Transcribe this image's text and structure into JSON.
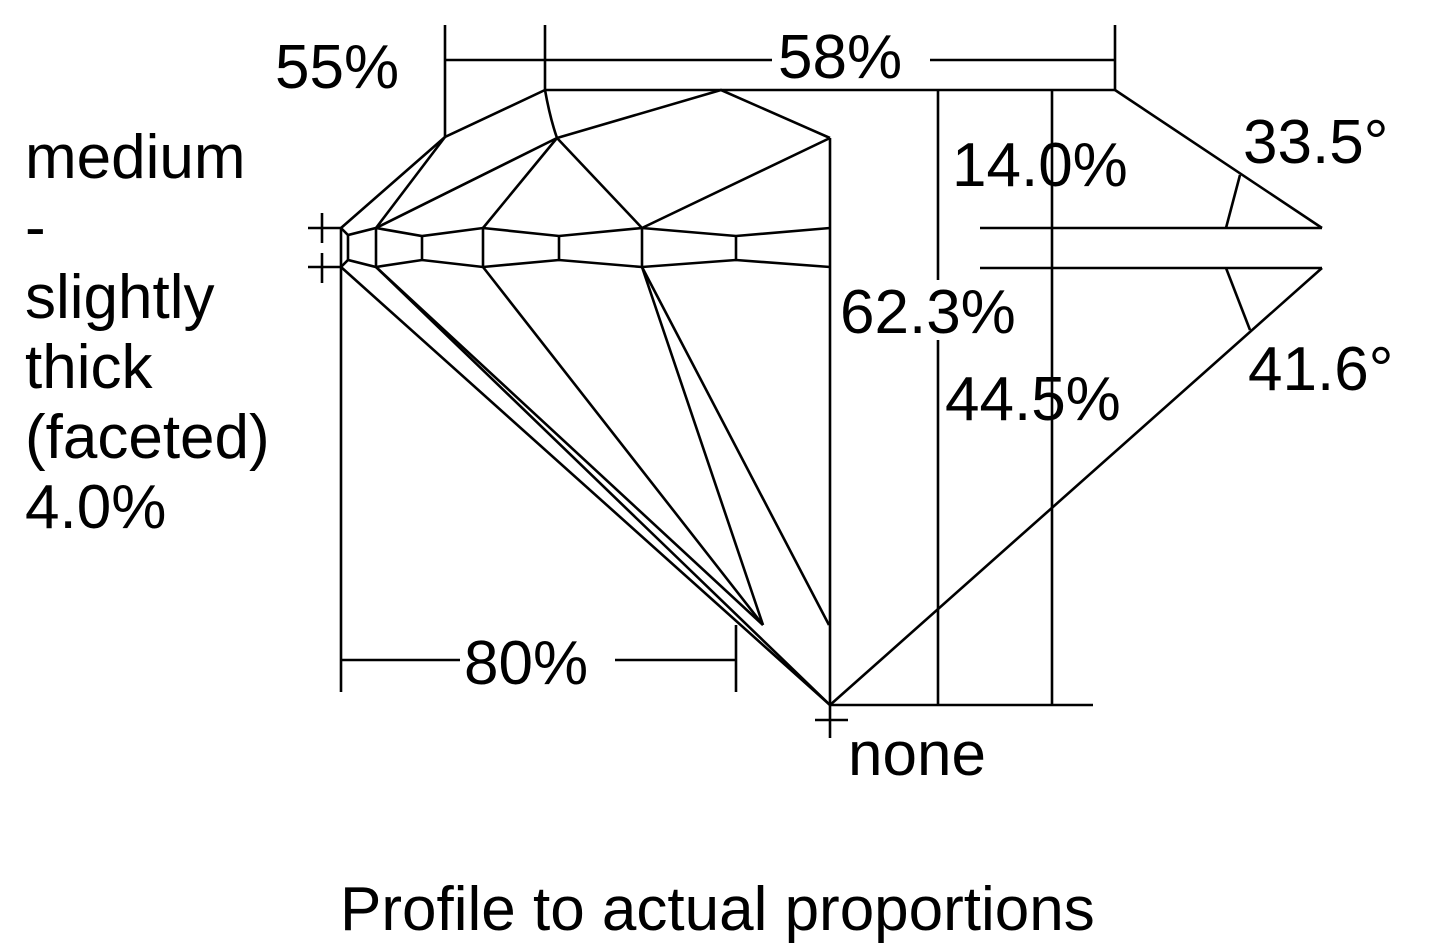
{
  "girdle_label": [
    "medium",
    "-",
    "slightly",
    "thick",
    "(faceted)",
    "4.0%"
  ],
  "star_length": "55%",
  "table": "58%",
  "crown_height": "14.0%",
  "crown_angle": "33.5°",
  "total_depth": "62.3%",
  "pavilion_depth": "44.5%",
  "pavilion_angle": "41.6°",
  "lower_half_length": "80%",
  "culet": "none",
  "caption": "Profile to actual proportions"
}
